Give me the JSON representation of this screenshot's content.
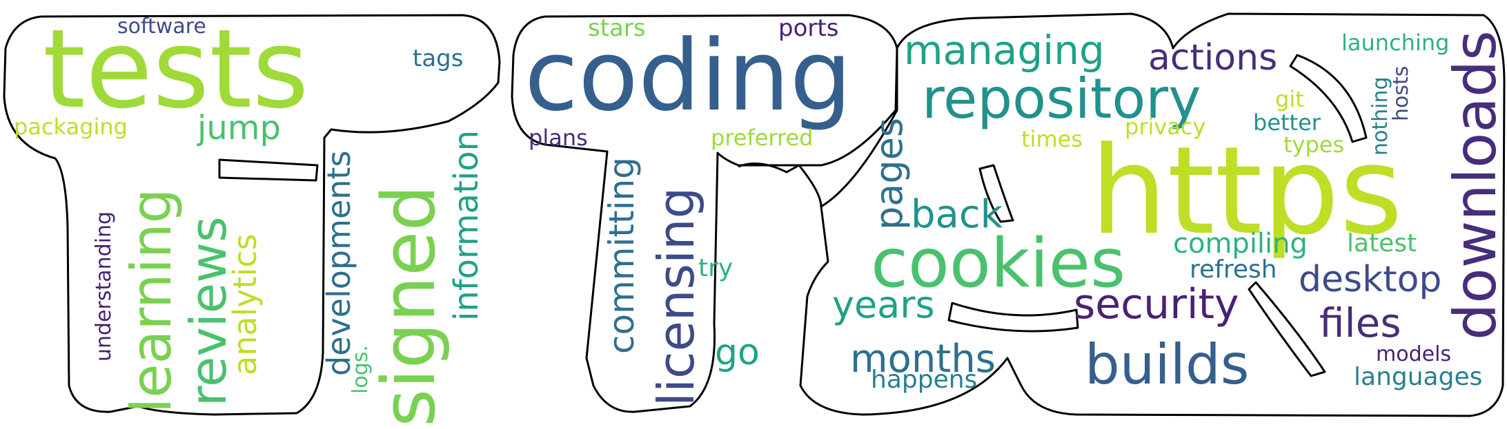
{
  "palette": {
    "lime": "#bddf26",
    "green_light": "#a0da39",
    "green": "#7ad151",
    "green_mid": "#4ac16d",
    "teal_light": "#2db27d",
    "teal": "#1fa187",
    "teal_dark": "#21918c",
    "cyan_blue": "#277f8e",
    "blue": "#2e6f8e",
    "blue_dark": "#355f8d",
    "indigo": "#3e4a89",
    "purple": "#472d7b",
    "purple_dark": "#482173"
  },
  "words": {
    "tests": "tests",
    "software": "software",
    "tags": "tags",
    "packaging": "packaging",
    "jump": "jump",
    "learning": "learning",
    "reviews": "reviews",
    "analytics": "analytics",
    "developments": "developments",
    "signed": "signed",
    "information": "information",
    "understanding": "understanding",
    "logs": "logs.",
    "stars": "stars",
    "ports": "ports",
    "coding": "coding",
    "plans": "plans",
    "preferred": "preferred",
    "committing": "committing",
    "licensing": "licensing",
    "try": "try",
    "go": "go",
    "managing": "managing",
    "repository": "repository",
    "actions": "actions",
    "launching": "launching",
    "hosts": "hosts",
    "nothing": "nothing",
    "git": "git",
    "privacy": "privacy",
    "better": "better",
    "times": "times",
    "types": "types",
    "downloads": "downloads",
    "https": "https",
    "pages": "pages",
    "back": "back",
    "cookies": "cookies",
    "compiling": "compiling",
    "latest": "latest",
    "refresh": "refresh",
    "desktop": "desktop",
    "years": "years",
    "security": "security",
    "files": "files",
    "months": "months",
    "builds": "builds",
    "models": "models",
    "happens": "happens",
    "languages": "languages"
  }
}
